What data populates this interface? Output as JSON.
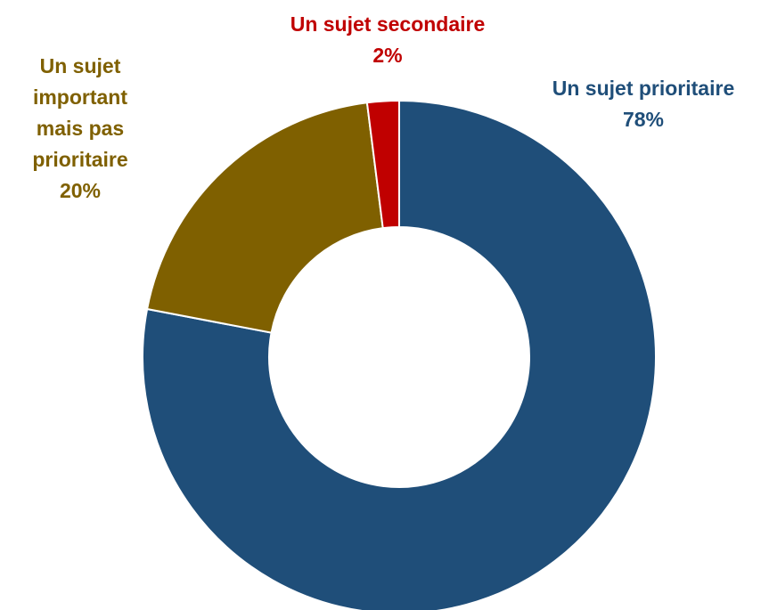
{
  "chart_data": {
    "type": "donut",
    "categories": [
      "Un sujet prioritaire",
      "Un sujet important mais pas prioritaire",
      "Un sujet secondaire"
    ],
    "values": [
      78,
      20,
      2
    ],
    "value_labels": [
      "78%",
      "20%",
      "2%"
    ],
    "colors": [
      "#1f4e79",
      "#7f6000",
      "#c00000"
    ]
  }
}
